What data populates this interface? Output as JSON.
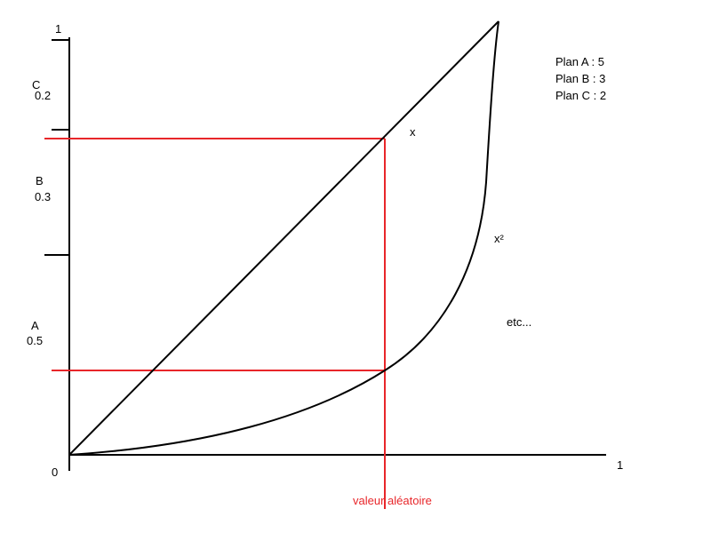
{
  "diagram": {
    "axis": {
      "y_top_label": "1",
      "x_end_label": "1",
      "origin_label": "0"
    },
    "segments": [
      {
        "name": "C",
        "value": "0.2"
      },
      {
        "name": "B",
        "value": "0.3"
      },
      {
        "name": "A",
        "value": "0.5"
      }
    ],
    "curves": {
      "linear_label": "x",
      "square_label": "x²",
      "etc_label": "etc..."
    },
    "legend": [
      "Plan A : 5",
      "Plan B : 3",
      "Plan C : 2"
    ],
    "random_value_label": "valeur aléatoire",
    "colors": {
      "ink": "#000000",
      "highlight": "#e8262a"
    }
  }
}
